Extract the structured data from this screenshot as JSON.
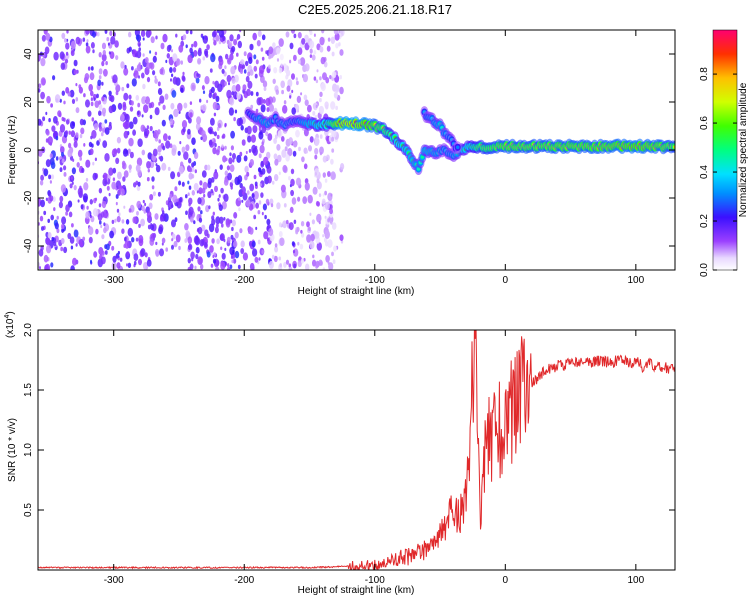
{
  "title": "C2E5.2025.206.21.18.R17",
  "chart_data": [
    {
      "type": "heatmap",
      "xlabel": "Height of straight line (km)",
      "ylabel": "Frequency (Hz)",
      "xlim": [
        -358,
        130
      ],
      "ylim": [
        -50,
        50
      ],
      "xticks": [
        -300,
        -200,
        -100,
        0,
        100
      ],
      "yticks": [
        -40,
        -20,
        0,
        20,
        40
      ],
      "colorbar": {
        "label": "Normalized spectral amplitude",
        "range": [
          0,
          0.98
        ],
        "ticks": [
          0.0,
          0.2,
          0.4,
          0.6,
          0.8
        ],
        "tick_labels": [
          "0.0",
          "0.2",
          "0.4",
          "0.6",
          "0.8"
        ]
      },
      "noise_region": {
        "x": [
          -358,
          -125
        ],
        "y": [
          -50,
          50
        ],
        "amplitude": 0.08
      },
      "ridge": {
        "x": [
          -197,
          -190,
          -183,
          -176,
          -170,
          -160,
          -150,
          -143,
          -135,
          -128,
          -120,
          -110,
          -100,
          -92,
          -85,
          -78,
          -72,
          -66,
          -62,
          -55,
          -48,
          -40,
          -35,
          -30,
          -25,
          -20,
          -10,
          0,
          20,
          40,
          60,
          80,
          100,
          120,
          130
        ],
        "y": [
          15,
          13,
          11,
          13,
          10,
          12,
          11,
          10,
          11,
          11,
          11,
          11,
          10,
          8,
          5,
          1,
          -3,
          -8,
          0,
          -1,
          0,
          -2,
          0,
          1,
          1,
          1,
          1,
          1.5,
          1.5,
          1.5,
          1.5,
          1.5,
          1.5,
          1.5,
          1.5
        ],
        "amplitude": [
          0.3,
          0.4,
          0.45,
          0.35,
          0.4,
          0.35,
          0.5,
          0.55,
          0.6,
          0.9,
          0.95,
          0.9,
          0.8,
          0.7,
          0.6,
          0.55,
          0.5,
          0.45,
          0.5,
          0.45,
          0.4,
          0.4,
          0.5,
          0.55,
          0.6,
          0.7,
          0.75,
          0.8,
          0.78,
          0.8,
          0.8,
          0.82,
          0.85,
          0.8,
          0.75
        ]
      },
      "branch": {
        "x": [
          -62,
          -56,
          -50,
          -45,
          -40,
          -36
        ],
        "y": [
          15,
          13,
          10,
          6,
          3,
          0
        ],
        "amplitude": [
          0.35,
          0.4,
          0.45,
          0.4,
          0.35,
          0.3
        ]
      }
    },
    {
      "type": "line",
      "xlabel": "Height of straight line (km)",
      "ylabel": "SNR (10 * v/v)",
      "multiplier_label": "(x10",
      "multiplier_exp": "4",
      "xlim": [
        -358,
        130
      ],
      "ylim": [
        0,
        2.0
      ],
      "xticks": [
        -300,
        -200,
        -100,
        0,
        100
      ],
      "yticks": [
        0.5,
        1.0,
        1.5,
        2.0
      ],
      "ytick_labels": [
        "0.5",
        "1.0",
        "1.5",
        "2.0"
      ],
      "color": "#e0282a",
      "series": [
        {
          "x": [
            -358,
            -300,
            -200,
            -150,
            -120,
            -100,
            -90,
            -80,
            -70,
            -60,
            -50,
            -45,
            -40,
            -35,
            -30,
            -27,
            -25,
            -23,
            -21,
            -19,
            -17,
            -15,
            -12,
            -10,
            -8,
            -5,
            -2,
            0,
            5,
            10,
            15,
            20,
            25,
            30,
            35,
            40,
            50,
            60,
            70,
            80,
            90,
            95,
            100,
            105,
            110,
            115,
            120,
            125,
            130
          ],
          "y": [
            0.02,
            0.02,
            0.02,
            0.02,
            0.03,
            0.04,
            0.06,
            0.1,
            0.12,
            0.18,
            0.3,
            0.4,
            0.5,
            0.45,
            0.6,
            1.2,
            1.6,
            2.0,
            1.0,
            0.3,
            0.8,
            1.0,
            1.1,
            1.0,
            1.15,
            1.2,
            1.0,
            1.1,
            1.35,
            1.45,
            1.5,
            1.55,
            1.6,
            1.65,
            1.68,
            1.7,
            1.72,
            1.73,
            1.74,
            1.73,
            1.75,
            1.72,
            1.75,
            1.7,
            1.74,
            1.7,
            1.69,
            1.68,
            1.68
          ]
        }
      ]
    }
  ]
}
